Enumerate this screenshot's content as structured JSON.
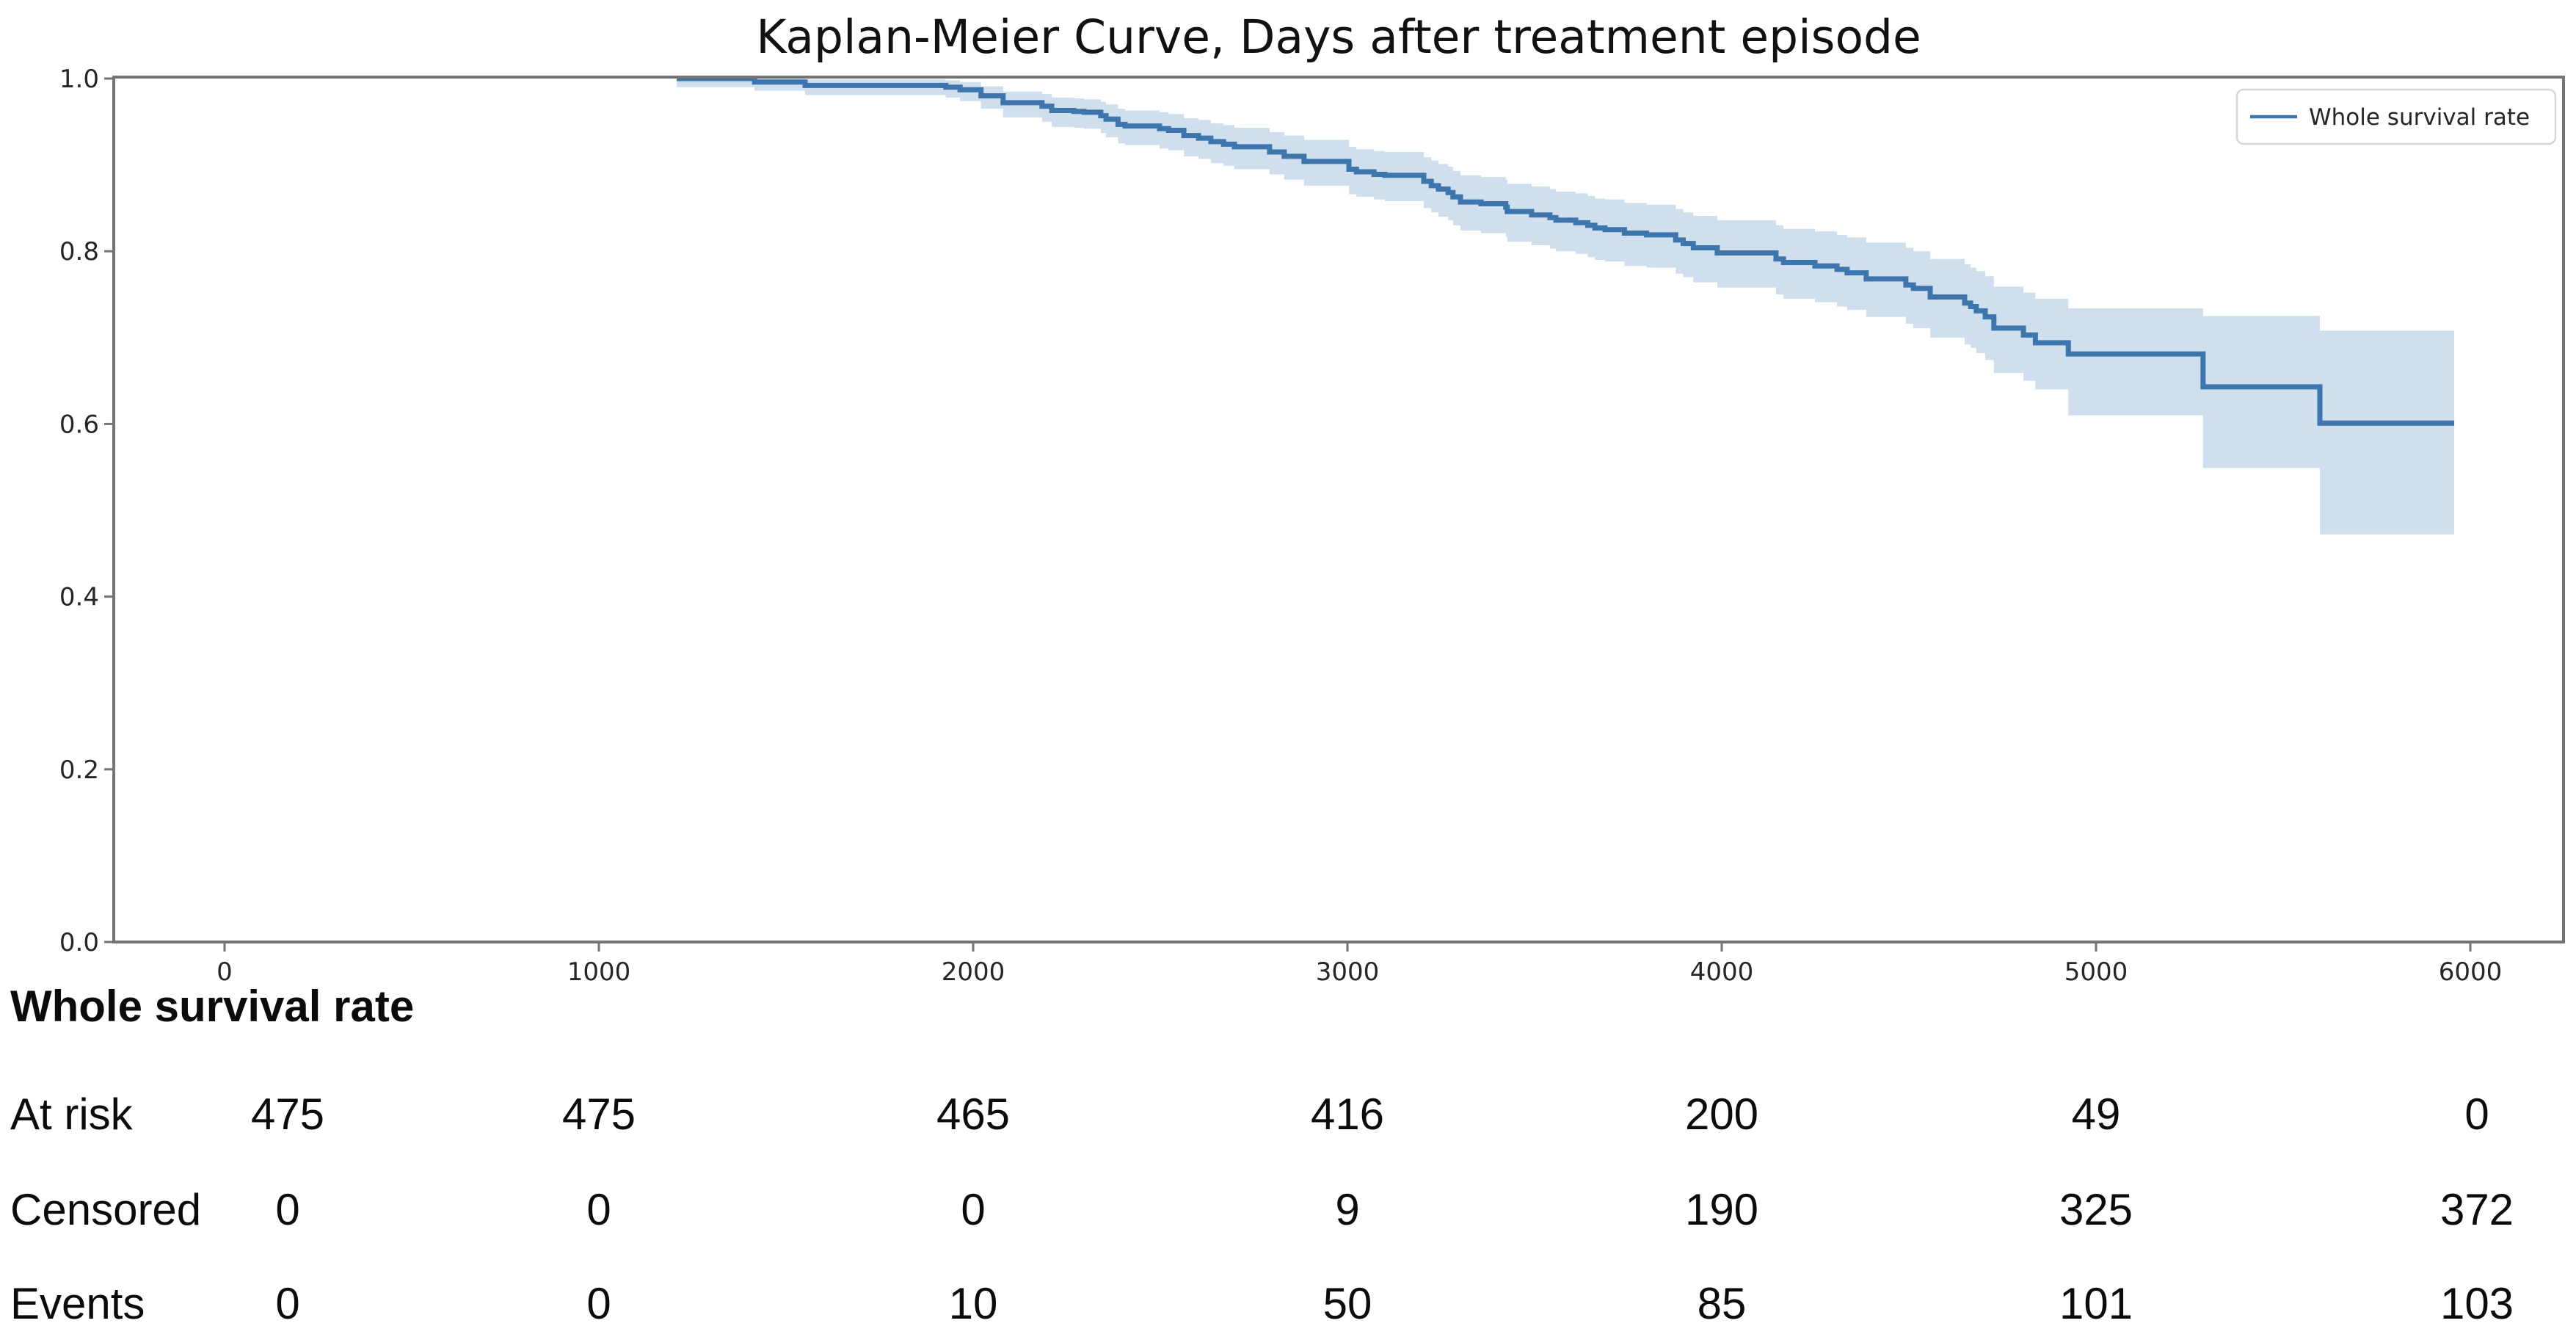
{
  "title": "Kaplan-Meier Curve, Days after treatment episode",
  "legend": {
    "label": "Whole survival rate"
  },
  "colors": {
    "line": "#3d76ad",
    "band": "#cfdfee",
    "spine": "#757575",
    "tick_text": "#262626",
    "title_text": "#111111",
    "legend_border": "#d6d6d6",
    "legend_bg": "#ffffff"
  },
  "chart_data": {
    "type": "line",
    "subtype": "kaplan-meier-step",
    "title": "Kaplan-Meier Curve, Days after treatment episode",
    "xlabel": "",
    "ylabel": "",
    "grid": false,
    "legend_position": "upper right",
    "x_ticks": [
      0,
      1000,
      2000,
      3000,
      4000,
      5000,
      6000
    ],
    "y_ticks": [
      0.0,
      0.2,
      0.4,
      0.6,
      0.8,
      1.0
    ],
    "xlim": [
      -300,
      6250
    ],
    "ylim": [
      0.0,
      1.002
    ],
    "series": [
      {
        "name": "Whole survival rate",
        "end_day": 5957,
        "steps_format": [
          "day",
          "survival",
          "ci_lower",
          "ci_upper"
        ],
        "steps": [
          [
            1208,
            1.0,
            0.99,
            1.0
          ],
          [
            1416,
            0.996,
            0.986,
            1.0
          ],
          [
            1551,
            0.992,
            0.981,
            0.999
          ],
          [
            1927,
            0.99,
            0.978,
            0.998
          ],
          [
            1965,
            0.987,
            0.974,
            0.996
          ],
          [
            2021,
            0.98,
            0.965,
            0.991
          ],
          [
            2080,
            0.972,
            0.955,
            0.985
          ],
          [
            2184,
            0.968,
            0.95,
            0.982
          ],
          [
            2210,
            0.963,
            0.944,
            0.978
          ],
          [
            2269,
            0.962,
            0.943,
            0.977
          ],
          [
            2296,
            0.961,
            0.942,
            0.976
          ],
          [
            2341,
            0.957,
            0.937,
            0.973
          ],
          [
            2355,
            0.953,
            0.932,
            0.97
          ],
          [
            2387,
            0.947,
            0.925,
            0.965
          ],
          [
            2406,
            0.945,
            0.923,
            0.963
          ],
          [
            2498,
            0.942,
            0.919,
            0.961
          ],
          [
            2522,
            0.94,
            0.917,
            0.959
          ],
          [
            2563,
            0.934,
            0.91,
            0.954
          ],
          [
            2602,
            0.931,
            0.907,
            0.952
          ],
          [
            2635,
            0.927,
            0.902,
            0.948
          ],
          [
            2669,
            0.924,
            0.899,
            0.946
          ],
          [
            2698,
            0.921,
            0.895,
            0.943
          ],
          [
            2792,
            0.915,
            0.889,
            0.938
          ],
          [
            2831,
            0.91,
            0.883,
            0.934
          ],
          [
            2884,
            0.904,
            0.876,
            0.929
          ],
          [
            3004,
            0.895,
            0.866,
            0.921
          ],
          [
            3024,
            0.892,
            0.863,
            0.918
          ],
          [
            3071,
            0.889,
            0.86,
            0.916
          ],
          [
            3100,
            0.888,
            0.858,
            0.915
          ],
          [
            3204,
            0.881,
            0.85,
            0.909
          ],
          [
            3224,
            0.876,
            0.845,
            0.905
          ],
          [
            3243,
            0.872,
            0.84,
            0.901
          ],
          [
            3269,
            0.868,
            0.836,
            0.898
          ],
          [
            3282,
            0.863,
            0.83,
            0.893
          ],
          [
            3302,
            0.857,
            0.824,
            0.888
          ],
          [
            3357,
            0.855,
            0.821,
            0.886
          ],
          [
            3423,
            0.851,
            0.817,
            0.883
          ],
          [
            3427,
            0.846,
            0.811,
            0.878
          ],
          [
            3492,
            0.842,
            0.807,
            0.875
          ],
          [
            3541,
            0.839,
            0.803,
            0.872
          ],
          [
            3557,
            0.836,
            0.8,
            0.869
          ],
          [
            3610,
            0.833,
            0.797,
            0.867
          ],
          [
            3642,
            0.83,
            0.793,
            0.864
          ],
          [
            3661,
            0.827,
            0.79,
            0.861
          ],
          [
            3688,
            0.825,
            0.788,
            0.86
          ],
          [
            3740,
            0.821,
            0.783,
            0.856
          ],
          [
            3799,
            0.819,
            0.781,
            0.854
          ],
          [
            3877,
            0.813,
            0.774,
            0.849
          ],
          [
            3897,
            0.809,
            0.77,
            0.845
          ],
          [
            3924,
            0.804,
            0.764,
            0.841
          ],
          [
            3988,
            0.798,
            0.758,
            0.836
          ],
          [
            4145,
            0.791,
            0.75,
            0.83
          ],
          [
            4165,
            0.787,
            0.745,
            0.826
          ],
          [
            4249,
            0.783,
            0.741,
            0.823
          ],
          [
            4308,
            0.779,
            0.736,
            0.819
          ],
          [
            4335,
            0.775,
            0.732,
            0.816
          ],
          [
            4386,
            0.768,
            0.724,
            0.81
          ],
          [
            4492,
            0.761,
            0.716,
            0.804
          ],
          [
            4512,
            0.757,
            0.711,
            0.8
          ],
          [
            4557,
            0.747,
            0.7,
            0.791
          ],
          [
            4649,
            0.74,
            0.692,
            0.785
          ],
          [
            4665,
            0.736,
            0.688,
            0.781
          ],
          [
            4680,
            0.731,
            0.682,
            0.777
          ],
          [
            4704,
            0.724,
            0.674,
            0.771
          ],
          [
            4727,
            0.711,
            0.659,
            0.759
          ],
          [
            4806,
            0.703,
            0.65,
            0.752
          ],
          [
            4838,
            0.694,
            0.64,
            0.745
          ],
          [
            4926,
            0.681,
            0.61,
            0.734
          ],
          [
            5286,
            0.643,
            0.549,
            0.725
          ],
          [
            5598,
            0.601,
            0.472,
            0.708
          ]
        ]
      }
    ]
  },
  "risk_table": {
    "header": "Whole survival rate",
    "columns_days": [
      0,
      1000,
      2000,
      3000,
      4000,
      5000,
      6000
    ],
    "rows": [
      {
        "label": "At risk",
        "values": [
          "475",
          "475",
          "465",
          "416",
          "200",
          "49",
          "0"
        ]
      },
      {
        "label": "Censored",
        "values": [
          "0",
          "0",
          "0",
          "9",
          "190",
          "325",
          "372"
        ]
      },
      {
        "label": "Events",
        "values": [
          "0",
          "0",
          "10",
          "50",
          "85",
          "101",
          "103"
        ]
      }
    ]
  }
}
